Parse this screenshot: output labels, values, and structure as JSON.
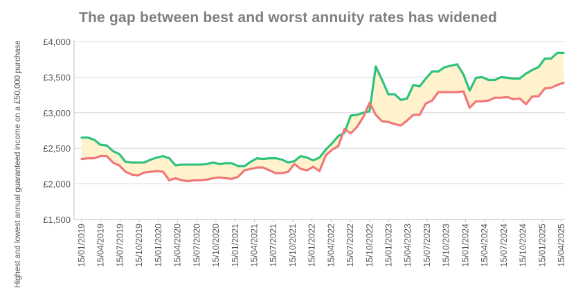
{
  "chart_data": {
    "type": "line",
    "title": "The gap between best and worst annuity rates has widened",
    "ylabel": "Highest and lowest annual guaranteed income on a £50,000 purchase",
    "xlabel": "",
    "ylim": [
      1500,
      4000
    ],
    "y_ticks": [
      "£1,500",
      "£2,000",
      "£2,500",
      "£3,000",
      "£3,500",
      "£4,000"
    ],
    "y_tick_values": [
      1500,
      2000,
      2500,
      3000,
      3500,
      4000
    ],
    "x_tick_labels": [
      "15/01/2019",
      "15/04/2019",
      "15/07/2019",
      "15/10/2019",
      "15/01/2020",
      "15/04/2020",
      "15/07/2020",
      "15/10/2020",
      "15/01/2021",
      "15/04/2021",
      "15/07/2021",
      "15/10/2021",
      "15/01/2022",
      "15/04/2022",
      "15/07/2022",
      "15/10/2022",
      "15/01/2023",
      "15/04/2023",
      "15/07/2023",
      "15/10/2023",
      "15/01/2024",
      "15/04/2024",
      "15/07/2024",
      "15/10/2024",
      "15/01/2025",
      "15/04/2025"
    ],
    "grid": true,
    "legend": "none",
    "fill_between_color": "#fff2cc",
    "series": [
      {
        "color": "#2ec27e",
        "values": [
          2650,
          2650,
          2620,
          2550,
          2540,
          2460,
          2420,
          2310,
          2300,
          2300,
          2300,
          2340,
          2370,
          2390,
          2360,
          2260,
          2270,
          2270,
          2270,
          2270,
          2280,
          2300,
          2280,
          2290,
          2290,
          2250,
          2250,
          2310,
          2360,
          2350,
          2360,
          2360,
          2340,
          2300,
          2320,
          2390,
          2370,
          2330,
          2370,
          2480,
          2570,
          2670,
          2720,
          2960,
          2970,
          3000,
          3020,
          3650,
          3460,
          3260,
          3260,
          3180,
          3200,
          3390,
          3370,
          3480,
          3580,
          3580,
          3640,
          3660,
          3680,
          3540,
          3310,
          3490,
          3500,
          3460,
          3460,
          3500,
          3490,
          3480,
          3480,
          3550,
          3600,
          3640,
          3760,
          3760,
          3840,
          3840
        ]
      },
      {
        "color": "#f07878",
        "values": [
          2350,
          2360,
          2360,
          2390,
          2390,
          2300,
          2260,
          2170,
          2130,
          2120,
          2160,
          2170,
          2180,
          2170,
          2050,
          2080,
          2050,
          2040,
          2050,
          2050,
          2060,
          2080,
          2090,
          2080,
          2070,
          2100,
          2190,
          2210,
          2230,
          2230,
          2190,
          2150,
          2150,
          2170,
          2280,
          2210,
          2190,
          2240,
          2180,
          2400,
          2480,
          2530,
          2770,
          2710,
          2800,
          2940,
          3140,
          2970,
          2880,
          2870,
          2840,
          2820,
          2890,
          2970,
          2970,
          3130,
          3170,
          3290,
          3290,
          3290,
          3290,
          3300,
          3070,
          3160,
          3160,
          3170,
          3210,
          3210,
          3220,
          3190,
          3200,
          3120,
          3230,
          3230,
          3340,
          3350,
          3390,
          3420
        ]
      }
    ]
  }
}
